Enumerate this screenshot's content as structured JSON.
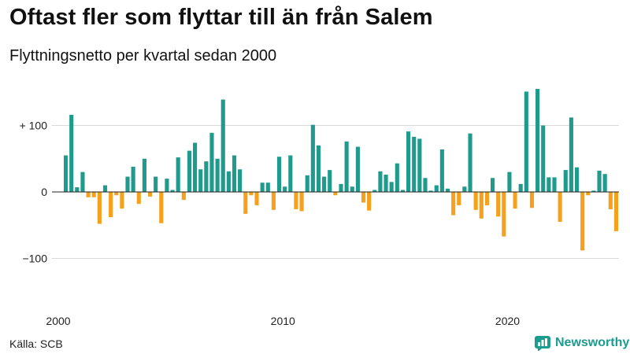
{
  "header": {
    "title": "Oftast fler som flyttar till än från Salem",
    "subtitle": "Flyttningsnetto per kvartal sedan 2000"
  },
  "footer": {
    "source": "Källa: SCB",
    "brand": "Newsworthy"
  },
  "colors": {
    "positive": "#1f9a8c",
    "negative": "#f5a11c",
    "grid": "#d9d9d9",
    "baseline": "#222222",
    "brand": "#1a9c8e"
  },
  "chart_data": {
    "type": "bar",
    "title": "Oftast fler som flyttar till än från Salem",
    "subtitle": "Flyttningsnetto per kvartal sedan 2000",
    "xlabel": "",
    "ylabel": "",
    "ylim": [
      -165,
      160
    ],
    "yticks": [
      100,
      0,
      -100
    ],
    "ytick_labels": [
      "+ 100",
      "0",
      "−100"
    ],
    "xticks": [
      "2000",
      "2010",
      "2020"
    ],
    "grid": true,
    "legend": "none",
    "start_period": "2000 Q1",
    "values": [
      55,
      116,
      7,
      30,
      -8,
      -8,
      -48,
      10,
      -38,
      -5,
      -25,
      23,
      38,
      -18,
      50,
      -7,
      23,
      -47,
      20,
      3,
      52,
      -12,
      62,
      74,
      34,
      46,
      89,
      50,
      139,
      31,
      55,
      34,
      -33,
      -5,
      -20,
      14,
      14,
      -27,
      53,
      8,
      55,
      -26,
      -29,
      25,
      101,
      70,
      23,
      33,
      -5,
      12,
      76,
      8,
      68,
      -16,
      -28,
      3,
      31,
      26,
      15,
      43,
      3,
      91,
      83,
      80,
      21,
      2,
      10,
      64,
      5,
      -35,
      -20,
      8,
      88,
      -27,
      -40,
      -20,
      21,
      -37,
      -67,
      30,
      -25,
      12,
      151,
      -24,
      155,
      100,
      22,
      22,
      -45,
      33,
      112,
      37,
      -88,
      -5,
      2,
      32,
      27,
      -26,
      -59
    ]
  }
}
